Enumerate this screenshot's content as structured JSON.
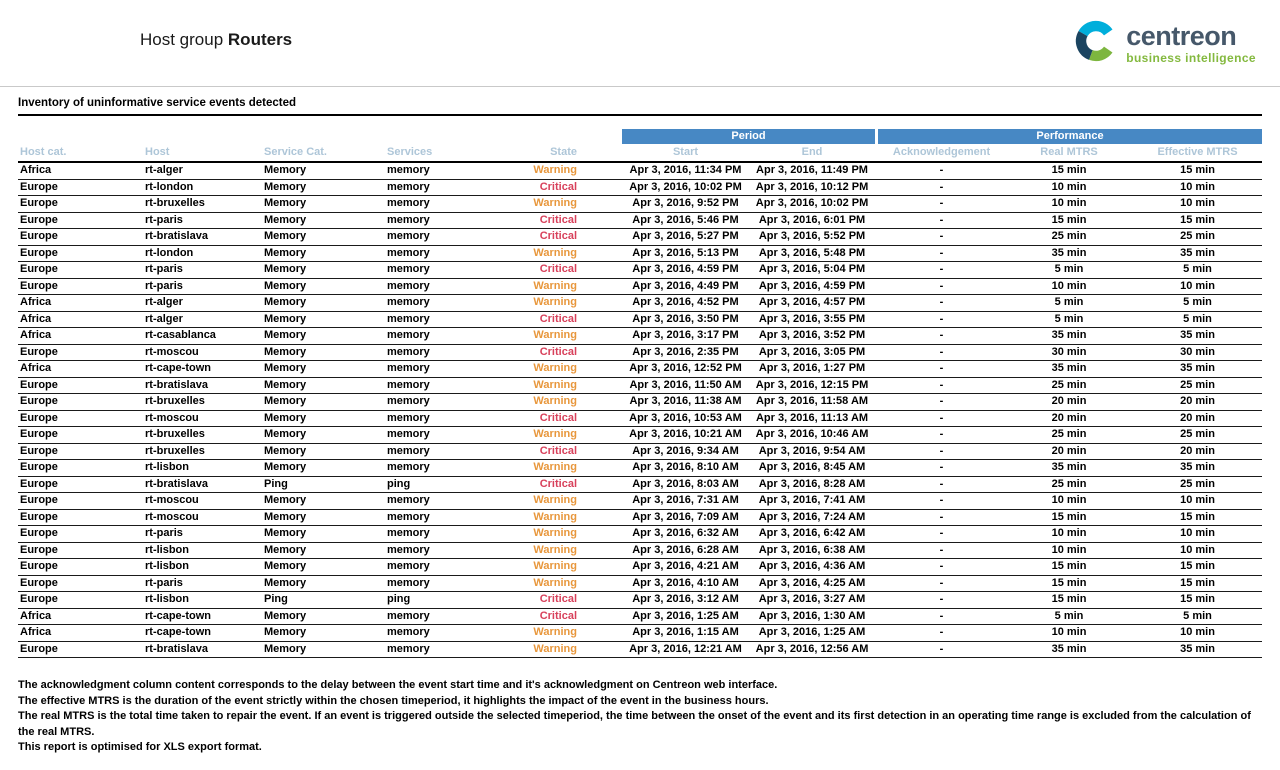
{
  "page": {
    "title_prefix": "Host group",
    "title_name": "Routers"
  },
  "logo": {
    "brand": "centreon",
    "tagline": "business intelligence"
  },
  "section": {
    "title": "Inventory of uninformative service events detected"
  },
  "table": {
    "group_headers": {
      "period": "Period",
      "performance": "Performance"
    },
    "columns": [
      "Host cat.",
      "Host",
      "Service Cat.",
      "Services",
      "State",
      "Start",
      "End",
      "Acknowledgement",
      "Real MTRS",
      "Effective MTRS"
    ],
    "rows": [
      [
        "Africa",
        "rt-alger",
        "Memory",
        "memory",
        "Warning",
        "Apr 3, 2016, 11:34 PM",
        "Apr 3, 2016, 11:49 PM",
        "-",
        "15 min",
        "15 min"
      ],
      [
        "Europe",
        "rt-london",
        "Memory",
        "memory",
        "Critical",
        "Apr 3, 2016, 10:02 PM",
        "Apr 3, 2016, 10:12 PM",
        "-",
        "10 min",
        "10 min"
      ],
      [
        "Europe",
        "rt-bruxelles",
        "Memory",
        "memory",
        "Warning",
        "Apr 3, 2016, 9:52 PM",
        "Apr 3, 2016, 10:02 PM",
        "-",
        "10 min",
        "10 min"
      ],
      [
        "Europe",
        "rt-paris",
        "Memory",
        "memory",
        "Critical",
        "Apr 3, 2016, 5:46 PM",
        "Apr 3, 2016, 6:01 PM",
        "-",
        "15 min",
        "15 min"
      ],
      [
        "Europe",
        "rt-bratislava",
        "Memory",
        "memory",
        "Critical",
        "Apr 3, 2016, 5:27 PM",
        "Apr 3, 2016, 5:52 PM",
        "-",
        "25 min",
        "25 min"
      ],
      [
        "Europe",
        "rt-london",
        "Memory",
        "memory",
        "Warning",
        "Apr 3, 2016, 5:13 PM",
        "Apr 3, 2016, 5:48 PM",
        "-",
        "35 min",
        "35 min"
      ],
      [
        "Europe",
        "rt-paris",
        "Memory",
        "memory",
        "Critical",
        "Apr 3, 2016, 4:59 PM",
        "Apr 3, 2016, 5:04 PM",
        "-",
        "5 min",
        "5 min"
      ],
      [
        "Europe",
        "rt-paris",
        "Memory",
        "memory",
        "Warning",
        "Apr 3, 2016, 4:49 PM",
        "Apr 3, 2016, 4:59 PM",
        "-",
        "10 min",
        "10 min"
      ],
      [
        "Africa",
        "rt-alger",
        "Memory",
        "memory",
        "Warning",
        "Apr 3, 2016, 4:52 PM",
        "Apr 3, 2016, 4:57 PM",
        "-",
        "5 min",
        "5 min"
      ],
      [
        "Africa",
        "rt-alger",
        "Memory",
        "memory",
        "Critical",
        "Apr 3, 2016, 3:50 PM",
        "Apr 3, 2016, 3:55 PM",
        "-",
        "5 min",
        "5 min"
      ],
      [
        "Africa",
        "rt-casablanca",
        "Memory",
        "memory",
        "Warning",
        "Apr 3, 2016, 3:17 PM",
        "Apr 3, 2016, 3:52 PM",
        "-",
        "35 min",
        "35 min"
      ],
      [
        "Europe",
        "rt-moscou",
        "Memory",
        "memory",
        "Critical",
        "Apr 3, 2016, 2:35 PM",
        "Apr 3, 2016, 3:05 PM",
        "-",
        "30 min",
        "30 min"
      ],
      [
        "Africa",
        "rt-cape-town",
        "Memory",
        "memory",
        "Warning",
        "Apr 3, 2016, 12:52 PM",
        "Apr 3, 2016, 1:27 PM",
        "-",
        "35 min",
        "35 min"
      ],
      [
        "Europe",
        "rt-bratislava",
        "Memory",
        "memory",
        "Warning",
        "Apr 3, 2016, 11:50 AM",
        "Apr 3, 2016, 12:15 PM",
        "-",
        "25 min",
        "25 min"
      ],
      [
        "Europe",
        "rt-bruxelles",
        "Memory",
        "memory",
        "Warning",
        "Apr 3, 2016, 11:38 AM",
        "Apr 3, 2016, 11:58 AM",
        "-",
        "20 min",
        "20 min"
      ],
      [
        "Europe",
        "rt-moscou",
        "Memory",
        "memory",
        "Critical",
        "Apr 3, 2016, 10:53 AM",
        "Apr 3, 2016, 11:13 AM",
        "-",
        "20 min",
        "20 min"
      ],
      [
        "Europe",
        "rt-bruxelles",
        "Memory",
        "memory",
        "Warning",
        "Apr 3, 2016, 10:21 AM",
        "Apr 3, 2016, 10:46 AM",
        "-",
        "25 min",
        "25 min"
      ],
      [
        "Europe",
        "rt-bruxelles",
        "Memory",
        "memory",
        "Critical",
        "Apr 3, 2016, 9:34 AM",
        "Apr 3, 2016, 9:54 AM",
        "-",
        "20 min",
        "20 min"
      ],
      [
        "Europe",
        "rt-lisbon",
        "Memory",
        "memory",
        "Warning",
        "Apr 3, 2016, 8:10 AM",
        "Apr 3, 2016, 8:45 AM",
        "-",
        "35 min",
        "35 min"
      ],
      [
        "Europe",
        "rt-bratislava",
        "Ping",
        "ping",
        "Critical",
        "Apr 3, 2016, 8:03 AM",
        "Apr 3, 2016, 8:28 AM",
        "-",
        "25 min",
        "25 min"
      ],
      [
        "Europe",
        "rt-moscou",
        "Memory",
        "memory",
        "Warning",
        "Apr 3, 2016, 7:31 AM",
        "Apr 3, 2016, 7:41 AM",
        "-",
        "10 min",
        "10 min"
      ],
      [
        "Europe",
        "rt-moscou",
        "Memory",
        "memory",
        "Warning",
        "Apr 3, 2016, 7:09 AM",
        "Apr 3, 2016, 7:24 AM",
        "-",
        "15 min",
        "15 min"
      ],
      [
        "Europe",
        "rt-paris",
        "Memory",
        "memory",
        "Warning",
        "Apr 3, 2016, 6:32 AM",
        "Apr 3, 2016, 6:42 AM",
        "-",
        "10 min",
        "10 min"
      ],
      [
        "Europe",
        "rt-lisbon",
        "Memory",
        "memory",
        "Warning",
        "Apr 3, 2016, 6:28 AM",
        "Apr 3, 2016, 6:38 AM",
        "-",
        "10 min",
        "10 min"
      ],
      [
        "Europe",
        "rt-lisbon",
        "Memory",
        "memory",
        "Warning",
        "Apr 3, 2016, 4:21 AM",
        "Apr 3, 2016, 4:36 AM",
        "-",
        "15 min",
        "15 min"
      ],
      [
        "Europe",
        "rt-paris",
        "Memory",
        "memory",
        "Warning",
        "Apr 3, 2016, 4:10 AM",
        "Apr 3, 2016, 4:25 AM",
        "-",
        "15 min",
        "15 min"
      ],
      [
        "Europe",
        "rt-lisbon",
        "Ping",
        "ping",
        "Critical",
        "Apr 3, 2016, 3:12 AM",
        "Apr 3, 2016, 3:27 AM",
        "-",
        "15 min",
        "15 min"
      ],
      [
        "Africa",
        "rt-cape-town",
        "Memory",
        "memory",
        "Critical",
        "Apr 3, 2016, 1:25 AM",
        "Apr 3, 2016, 1:30 AM",
        "-",
        "5 min",
        "5 min"
      ],
      [
        "Africa",
        "rt-cape-town",
        "Memory",
        "memory",
        "Warning",
        "Apr 3, 2016, 1:15 AM",
        "Apr 3, 2016, 1:25 AM",
        "-",
        "10 min",
        "10 min"
      ],
      [
        "Europe",
        "rt-bratislava",
        "Memory",
        "memory",
        "Warning",
        "Apr 3, 2016, 12:21 AM",
        "Apr 3, 2016, 12:56 AM",
        "-",
        "35 min",
        "35 min"
      ]
    ]
  },
  "notes": [
    "The acknowledgment column content corresponds to the delay between the event start time and it's acknowledgment on Centreon web interface.",
    "The effective MTRS is the duration of the event strictly within the chosen timeperiod, it highlights the impact of the event in the business hours.",
    "The real MTRS is the total time taken to repair the event. If an event is triggered outside the selected timeperiod, the time between the onset of the event and its first detection in an operating time range is excluded from the calculation of the real MTRS.",
    "This report is optimised for XLS export format."
  ],
  "colors": {
    "group_header_bg": "#4788C4",
    "column_header_text": "#AEC6D8",
    "warning": "#E8973C",
    "critical": "#D8415B",
    "brand_text": "#46586A",
    "brand_green": "#84B93F",
    "logo_blue": "#00AEDB",
    "logo_navy": "#1B4460",
    "logo_green": "#7DB63F"
  }
}
